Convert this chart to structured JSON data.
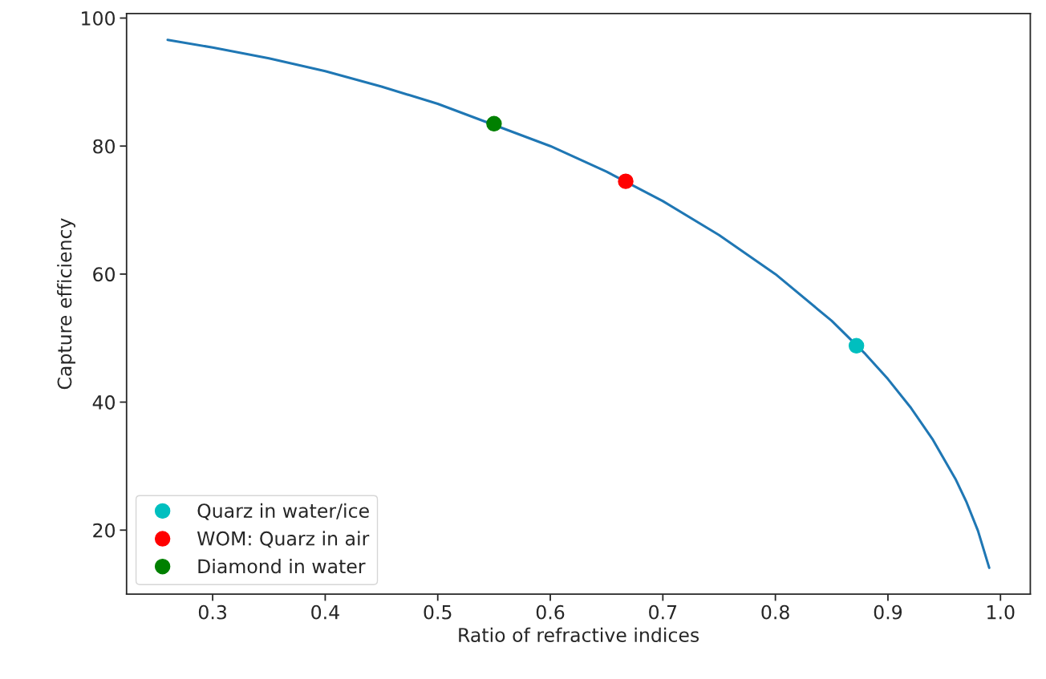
{
  "chart_data": {
    "type": "line",
    "xlabel": "Ratio of refractive indices",
    "ylabel": "Capture efficiency",
    "xlim": [
      0.2235,
      1.0265
    ],
    "ylim": [
      10.0,
      100.7
    ],
    "xticks": [
      0.3,
      0.4,
      0.5,
      0.6,
      0.7,
      0.8,
      0.9,
      {
        "value": 1,
        "label": "1.0"
      }
    ],
    "yticks": [
      20,
      40,
      60,
      80,
      100
    ],
    "grid": false,
    "legend": "bottom left",
    "series": [
      {
        "color": "#1f77b4",
        "marker": "none",
        "x": [
          0.26,
          0.3,
          0.35,
          0.4,
          0.45,
          0.5,
          0.6,
          0.65,
          0.7,
          0.75,
          0.8,
          0.85,
          0.88,
          0.9,
          0.92,
          0.94,
          0.96,
          0.97,
          0.98,
          0.99
        ],
        "values": [
          96.6,
          95.4,
          93.7,
          91.7,
          89.3,
          86.6,
          80.0,
          76.0,
          71.4,
          66.1,
          60.0,
          52.7,
          47.5,
          43.6,
          39.2,
          34.1,
          28.0,
          24.3,
          19.9,
          14.1
        ]
      },
      {
        "type": "scatter",
        "name": "Quarz in water/ice",
        "color": "#00bfbf",
        "marker": "circle",
        "x": [
          0.872
        ],
        "values": [
          48.8
        ]
      },
      {
        "type": "scatter",
        "name": "WOM: Quarz in air",
        "color": "#ff0000",
        "marker": "circle",
        "x": [
          0.667
        ],
        "values": [
          74.5
        ]
      },
      {
        "type": "scatter",
        "name": "Diamond in water",
        "color": "#008000",
        "marker": "circle",
        "x": [
          0.55
        ],
        "values": [
          83.5
        ]
      }
    ]
  }
}
